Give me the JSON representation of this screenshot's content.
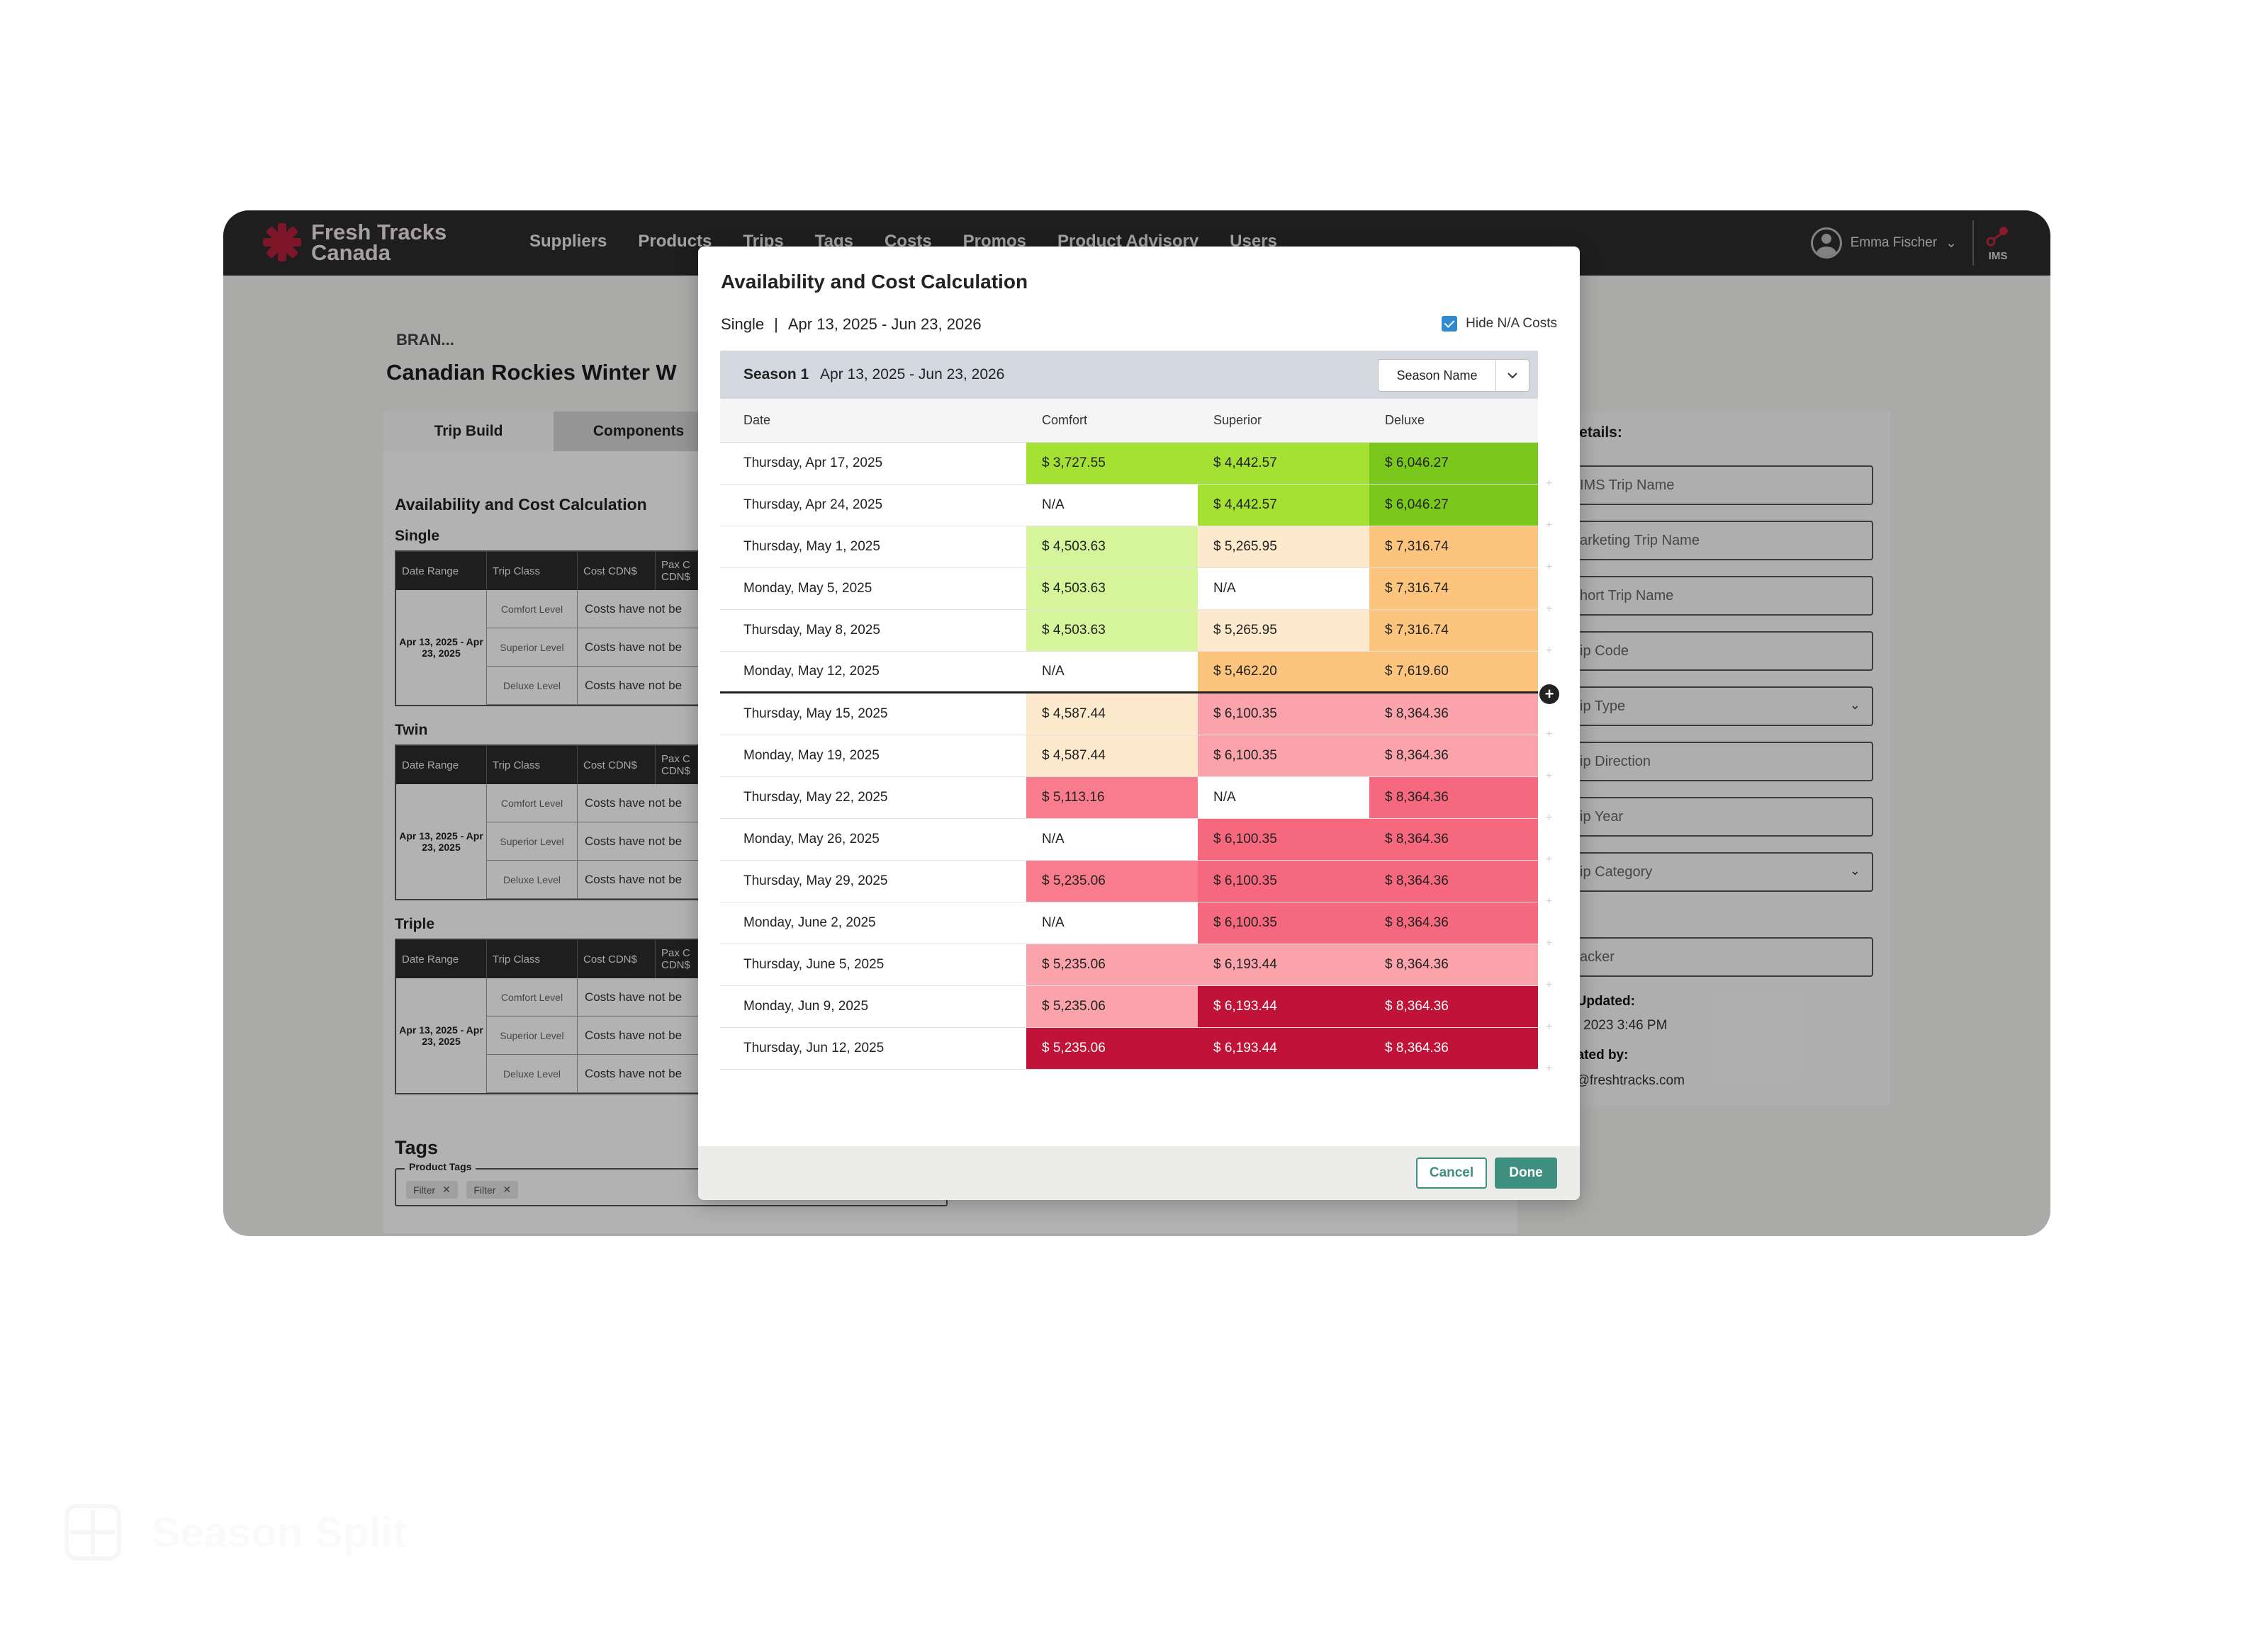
{
  "app": {
    "brand_line1": "Fresh Tracks",
    "brand_line2": "Canada",
    "nav": [
      "Suppliers",
      "Products",
      "Trips",
      "Tags",
      "Costs",
      "Promos",
      "Product Advisory",
      "Users"
    ],
    "user_name": "Emma Fischer",
    "ims_label": "IMS"
  },
  "background": {
    "breadcrumb": "BRAN...",
    "trip_title": "Canadian Rockies Winter W",
    "tabs": [
      "Trip Build",
      "Components"
    ],
    "section_title": "Availability and Cost Calculation",
    "groups": [
      {
        "label": "Single",
        "date_range": "Apr 13, 2025 - Apr 23, 2025"
      },
      {
        "label": "Twin",
        "date_range": "Apr 13, 2025 - Apr 23, 2025"
      },
      {
        "label": "Triple",
        "date_range": "Apr 13, 2025 - Apr 23, 2025"
      }
    ],
    "table_headers": [
      "Date Range",
      "Trip Class",
      "Cost CDN$",
      "Pax C CDN$"
    ],
    "levels": [
      "Comfort Level",
      "Superior Level",
      "Deluxe Level"
    ],
    "cost_text": "Costs have not be",
    "tags_title": "Tags",
    "tag_boxes": [
      {
        "label": "Product Tags",
        "chips": [
          "Filter",
          "Filter"
        ]
      },
      {
        "label": "Product Tags",
        "chips": [
          "Filter",
          ""
        ]
      }
    ],
    "right_panel": {
      "heading": "Details:",
      "fields": [
        "IMS Trip Name",
        "arketing Trip Name",
        "hort Trip Name",
        "ip Code",
        "ip Type",
        "ip Direction",
        "ip Year",
        "ip Category",
        "acker"
      ],
      "last_updated_label": "t Updated:",
      "last_updated_value": "2, 2023 3:46 PM",
      "updated_by_label": "dated by:",
      "updated_by_value": "e@freshtracks.com"
    }
  },
  "modal": {
    "title": "Availability and Cost Calculation",
    "occupancy": "Single",
    "separator": "|",
    "range": "Apr 13, 2025 - Jun 23, 2026",
    "hide_na_label": "Hide N/A Costs",
    "hide_na_checked": true,
    "season_name": "Season 1",
    "season_range": "Apr 13, 2025 - Jun 23, 2026",
    "season_select_label": "Season Name",
    "columns": [
      "Date",
      "Comfort",
      "Superior",
      "Deluxe"
    ],
    "rows": [
      {
        "date": "Thursday, Apr 17, 2025",
        "comfort": "$ 3,727.55",
        "superior": "$ 4,442.57",
        "deluxe": "$ 6,046.27"
      },
      {
        "date": "Thursday, Apr 24, 2025",
        "comfort": "N/A",
        "superior": "$ 4,442.57",
        "deluxe": "$ 6,046.27"
      },
      {
        "date": "Thursday, May 1, 2025",
        "comfort": "$ 4,503.63",
        "superior": "$ 5,265.95",
        "deluxe": "$ 7,316.74"
      },
      {
        "date": "Monday, May 5, 2025",
        "comfort": "$ 4,503.63",
        "superior": "N/A",
        "deluxe": "$ 7,316.74"
      },
      {
        "date": "Thursday, May 8, 2025",
        "comfort": "$ 4,503.63",
        "superior": "$ 5,265.95",
        "deluxe": "$ 7,316.74"
      },
      {
        "date": "Monday, May 12, 2025",
        "comfort": "N/A",
        "superior": "$ 5,462.20",
        "deluxe": "$ 7,619.60"
      },
      {
        "date": "Thursday, May 15, 2025",
        "comfort": "$ 4,587.44",
        "superior": "$ 6,100.35",
        "deluxe": "$ 8,364.36"
      },
      {
        "date": "Monday, May 19, 2025",
        "comfort": "$ 4,587.44",
        "superior": "$ 6,100.35",
        "deluxe": "$ 8,364.36"
      },
      {
        "date": "Thursday, May 22, 2025",
        "comfort": "$ 5,113.16",
        "superior": "N/A",
        "deluxe": "$ 8,364.36"
      },
      {
        "date": "Monday, May 26, 2025",
        "comfort": "N/A",
        "superior": "$ 6,100.35",
        "deluxe": "$ 8,364.36"
      },
      {
        "date": "Thursday, May 29, 2025",
        "comfort": "$ 5,235.06",
        "superior": "$ 6,100.35",
        "deluxe": "$ 8,364.36"
      },
      {
        "date": "Monday, June 2, 2025",
        "comfort": "N/A",
        "superior": "$ 6,100.35",
        "deluxe": "$ 8,364.36"
      },
      {
        "date": "Thursday, June 5, 2025",
        "comfort": "$ 5,235.06",
        "superior": "$ 6,193.44",
        "deluxe": "$ 8,364.36"
      },
      {
        "date": "Monday, Jun 9, 2025",
        "comfort": "$ 5,235.06",
        "superior": "$ 6,193.44",
        "deluxe": "$ 8,364.36"
      },
      {
        "date": "Thursday, Jun 12, 2025",
        "comfort": "$ 5,235.06",
        "superior": "$ 6,193.44",
        "deluxe": "$ 8,364.36"
      }
    ],
    "cell_colors": [
      [
        "#a5e133",
        "#a5e133",
        "#7ac81c"
      ],
      [
        "#ffffff",
        "#a5e133",
        "#7ac81c"
      ],
      [
        "#d6f59a",
        "#fde9cc",
        "#fcc47c"
      ],
      [
        "#d6f59a",
        "#ffffff",
        "#fcc47c"
      ],
      [
        "#d6f59a",
        "#fde9cc",
        "#fcc47c"
      ],
      [
        "#ffffff",
        "#fcc47c",
        "#fcc47c"
      ],
      [
        "#fde9cc",
        "#faa3ab",
        "#faa3ab"
      ],
      [
        "#fde9cc",
        "#faa3ab",
        "#faa3ab"
      ],
      [
        "#f87c8c",
        "#ffffff",
        "#f5687d"
      ],
      [
        "#ffffff",
        "#f5687d",
        "#f5687d"
      ],
      [
        "#f87c8c",
        "#f5687d",
        "#f5687d"
      ],
      [
        "#ffffff",
        "#f5687d",
        "#f5687d"
      ],
      [
        "#faa3ab",
        "#faa3ab",
        "#faa3ab"
      ],
      [
        "#faa3ab",
        "#c11237",
        "#c11237"
      ],
      [
        "#c11237",
        "#c11237",
        "#c11237"
      ]
    ],
    "split_after_row": 5,
    "cancel_label": "Cancel",
    "done_label": "Done"
  },
  "watermark": "Season Split"
}
